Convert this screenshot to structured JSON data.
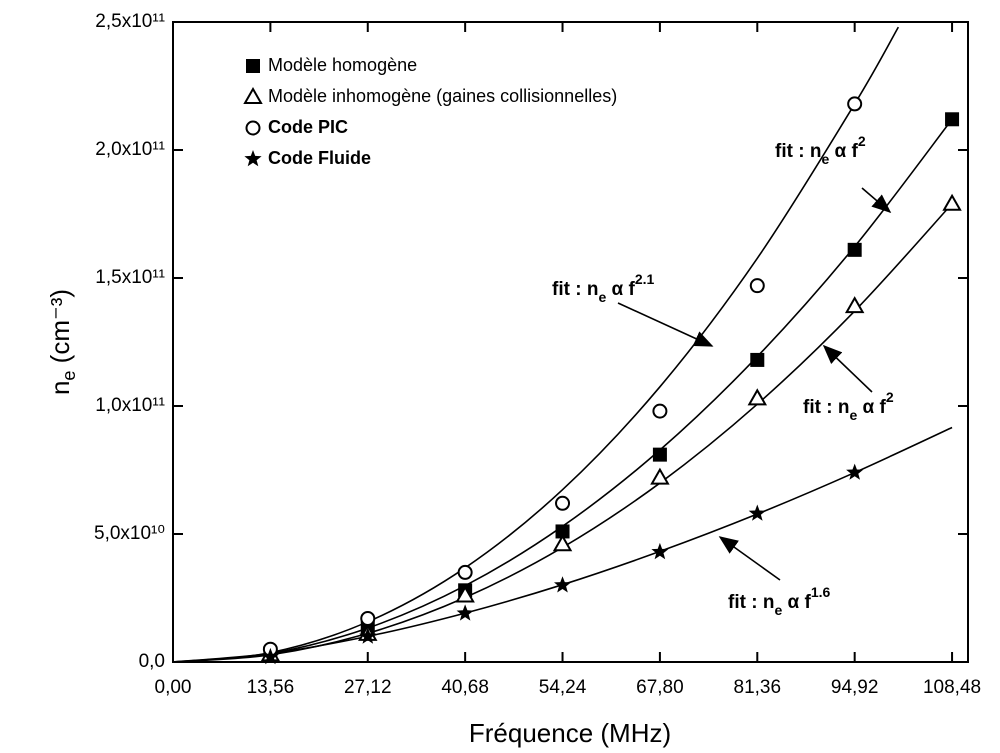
{
  "chart_data": {
    "type": "scatter",
    "xlabel": "Fréquence (MHz)",
    "ylabel": "n",
    "ylabel_sub": "e",
    "ylabel_unit": " (cm⁻³)",
    "xlim": [
      0,
      110.7
    ],
    "ylim": [
      0,
      250000000000.0
    ],
    "xticks": [
      {
        "value": 0,
        "label": "0,00"
      },
      {
        "value": 13.56,
        "label": "13,56"
      },
      {
        "value": 27.12,
        "label": "27,12"
      },
      {
        "value": 40.68,
        "label": "40,68"
      },
      {
        "value": 54.24,
        "label": "54,24"
      },
      {
        "value": 67.8,
        "label": "67,80"
      },
      {
        "value": 81.36,
        "label": "81,36"
      },
      {
        "value": 94.92,
        "label": "94,92"
      },
      {
        "value": 108.48,
        "label": "108,48"
      }
    ],
    "yticks": [
      {
        "value": 0,
        "label": "0,0"
      },
      {
        "value": 50000000000.0,
        "label": "5,0x10¹⁰"
      },
      {
        "value": 100000000000.0,
        "label": "1,0x10¹¹"
      },
      {
        "value": 150000000000.0,
        "label": "1,5x10¹¹"
      },
      {
        "value": 200000000000.0,
        "label": "2,0x10¹¹"
      },
      {
        "value": 250000000000.0,
        "label": "2,5x10¹¹"
      }
    ],
    "legend": "upper left",
    "series": [
      {
        "name": "Modèle homogène",
        "color": "#000000",
        "marker": "square",
        "x": [
          13.56,
          27.12,
          40.68,
          54.24,
          67.8,
          81.36,
          94.92,
          108.48
        ],
        "values": [
          3300000000.0,
          13300000000.0,
          28000000000.0,
          51000000000.0,
          81000000000.0,
          118000000000.0,
          161000000000.0,
          212000000000.0
        ]
      },
      {
        "name": "Modèle inhomogène (gaines collisionnelles)",
        "color": "#000000",
        "marker": "triangle",
        "x": [
          13.56,
          27.12,
          40.68,
          54.24,
          67.8,
          81.36,
          94.92,
          108.48
        ],
        "values": [
          3000000000.0,
          11000000000.0,
          26000000000.0,
          46000000000.0,
          72000000000.0,
          103000000000.0,
          139000000000.0,
          179000000000.0
        ]
      },
      {
        "name": "Code PIC",
        "color": "#000000",
        "marker": "circle",
        "x": [
          13.56,
          27.12,
          40.68,
          54.24,
          67.8,
          81.36,
          94.92
        ],
        "values": [
          5000000000.0,
          17000000000.0,
          35000000000.0,
          62000000000.0,
          98000000000.0,
          147000000000.0,
          218000000000.0
        ]
      },
      {
        "name": "Code Fluide",
        "color": "#000000",
        "marker": "star",
        "x": [
          13.56,
          27.12,
          40.68,
          54.24,
          67.8,
          81.36,
          94.92
        ],
        "values": [
          2000000000.0,
          10000000000.0,
          19000000000.0,
          30000000000.0,
          43000000000.0,
          58000000000.0,
          74000000000.0
        ]
      }
    ],
    "fits": [
      {
        "text": "fit : n",
        "sub": "e",
        "mid": " α f",
        "sup": "2",
        "x": [
          0,
          13.56,
          27.12,
          40.68,
          54.24,
          67.8,
          81.36,
          94.92,
          108.48
        ],
        "values": [
          0,
          3310000000.0,
          13250000000.0,
          29800000000.0,
          53000000000.0,
          82800000000.0,
          119300000000.0,
          162300000000.0,
          212000000000.0
        ]
      },
      {
        "text": "fit : n",
        "sub": "e",
        "mid": " α f",
        "sup": "2.1",
        "x": [
          0,
          13.56,
          27.12,
          40.68,
          54.24,
          67.8,
          81.36,
          94.92,
          101
        ],
        "values": [
          0,
          3660000000.0,
          15700000000.0,
          36800000000.0,
          67300000000.0,
          107500000000.0,
          157700000000.0,
          218000000000.0,
          248000000000.0
        ]
      },
      {
        "text": "fit : n",
        "sub": "e",
        "mid": " α f",
        "sup": "2",
        "x": [
          0,
          13.56,
          27.12,
          40.68,
          54.24,
          67.8,
          81.36,
          94.92,
          108.48
        ],
        "values": [
          0,
          2800000000.0,
          11200000000.0,
          25200000000.0,
          44750000000.0,
          69900000000.0,
          100700000000.0,
          137100000000.0,
          179000000000.0
        ]
      },
      {
        "text": "fit : n",
        "sub": "e",
        "mid": " α f",
        "sup": "1.6",
        "x": [
          0,
          13.56,
          27.12,
          40.68,
          54.24,
          67.8,
          81.36,
          94.92,
          108.48
        ],
        "values": [
          0,
          3300000000.0,
          10000000000.0,
          19100000000.0,
          30200000000.0,
          43200000000.0,
          57800000000.0,
          74000000000.0,
          91600000000.0
        ]
      }
    ]
  }
}
